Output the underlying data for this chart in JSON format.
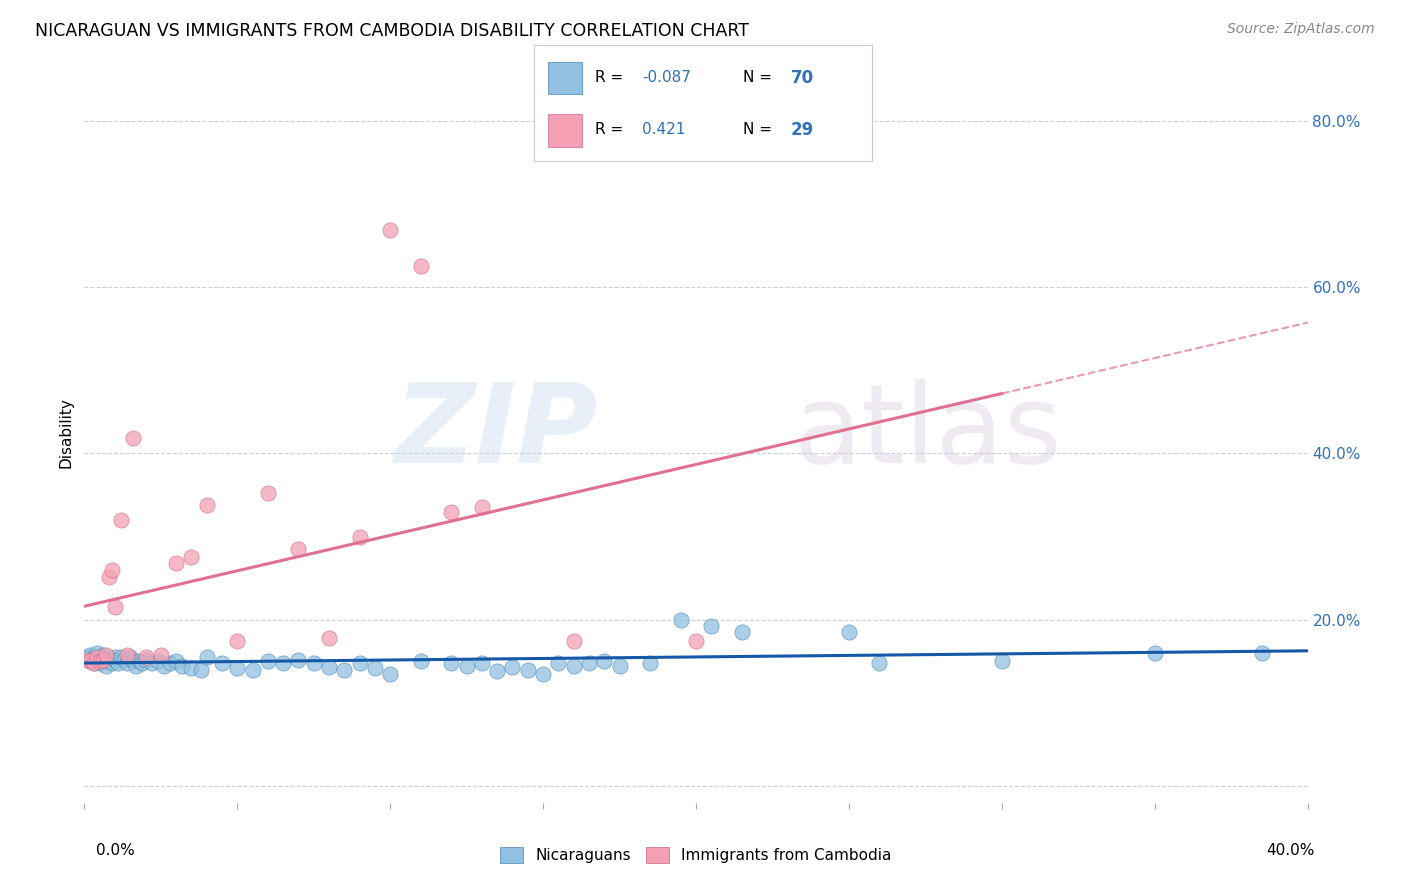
{
  "title": "NICARAGUAN VS IMMIGRANTS FROM CAMBODIA DISABILITY CORRELATION CHART",
  "source": "Source: ZipAtlas.com",
  "ylabel": "Disability",
  "xlim": [
    0.0,
    0.4
  ],
  "ylim": [
    -0.02,
    0.87
  ],
  "yticks": [
    0.0,
    0.2,
    0.4,
    0.6,
    0.8
  ],
  "xticks": [
    0.0,
    0.05,
    0.1,
    0.15,
    0.2,
    0.25,
    0.3,
    0.35,
    0.4
  ],
  "blue_color": "#92c0e0",
  "pink_color": "#f4a0b4",
  "blue_line_color": "#1558a8",
  "pink_line_color": "#e07090",
  "blue_r": "-0.087",
  "pink_r": "0.421",
  "blue_n": "70",
  "pink_n": "29",
  "r_label_color": "#3070b8",
  "n_label_color": "#3070b8",
  "blue_scatter_x": [
    0.001,
    0.002,
    0.002,
    0.003,
    0.003,
    0.004,
    0.004,
    0.005,
    0.005,
    0.006,
    0.006,
    0.007,
    0.007,
    0.008,
    0.009,
    0.01,
    0.01,
    0.011,
    0.012,
    0.013,
    0.014,
    0.015,
    0.016,
    0.017,
    0.018,
    0.019,
    0.02,
    0.022,
    0.024,
    0.026,
    0.028,
    0.03,
    0.032,
    0.035,
    0.038,
    0.04,
    0.045,
    0.05,
    0.055,
    0.06,
    0.065,
    0.07,
    0.075,
    0.08,
    0.085,
    0.09,
    0.095,
    0.1,
    0.11,
    0.12,
    0.125,
    0.13,
    0.135,
    0.14,
    0.145,
    0.15,
    0.155,
    0.16,
    0.165,
    0.17,
    0.175,
    0.185,
    0.195,
    0.205,
    0.215,
    0.25,
    0.26,
    0.3,
    0.35,
    0.385
  ],
  "blue_scatter_y": [
    0.155,
    0.15,
    0.158,
    0.148,
    0.155,
    0.152,
    0.16,
    0.148,
    0.155,
    0.15,
    0.158,
    0.145,
    0.153,
    0.15,
    0.148,
    0.155,
    0.152,
    0.148,
    0.155,
    0.152,
    0.148,
    0.155,
    0.15,
    0.145,
    0.15,
    0.148,
    0.152,
    0.148,
    0.15,
    0.145,
    0.148,
    0.15,
    0.145,
    0.142,
    0.14,
    0.155,
    0.148,
    0.142,
    0.14,
    0.15,
    0.148,
    0.152,
    0.148,
    0.143,
    0.14,
    0.148,
    0.142,
    0.135,
    0.15,
    0.148,
    0.145,
    0.148,
    0.138,
    0.143,
    0.14,
    0.135,
    0.148,
    0.145,
    0.148,
    0.15,
    0.145,
    0.148,
    0.2,
    0.192,
    0.185,
    0.185,
    0.148,
    0.15,
    0.16,
    0.16
  ],
  "pink_scatter_x": [
    0.001,
    0.002,
    0.003,
    0.004,
    0.005,
    0.006,
    0.007,
    0.008,
    0.009,
    0.01,
    0.012,
    0.014,
    0.016,
    0.02,
    0.025,
    0.03,
    0.035,
    0.04,
    0.05,
    0.06,
    0.07,
    0.08,
    0.09,
    0.1,
    0.11,
    0.12,
    0.13,
    0.16,
    0.2
  ],
  "pink_scatter_y": [
    0.152,
    0.15,
    0.148,
    0.155,
    0.15,
    0.152,
    0.158,
    0.252,
    0.26,
    0.215,
    0.32,
    0.158,
    0.418,
    0.155,
    0.158,
    0.268,
    0.275,
    0.338,
    0.175,
    0.352,
    0.285,
    0.178,
    0.3,
    0.668,
    0.625,
    0.33,
    0.335,
    0.175,
    0.175
  ]
}
